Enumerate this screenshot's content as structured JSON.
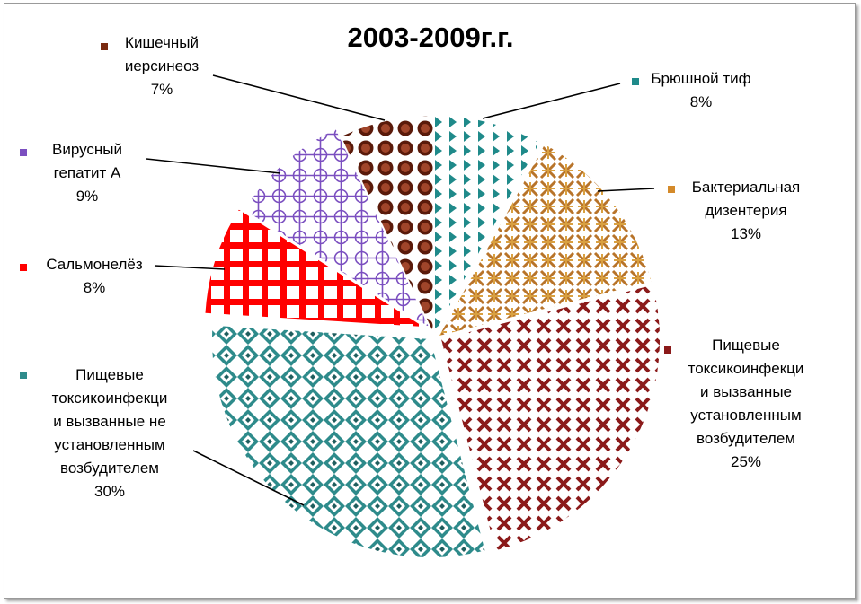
{
  "chart_data": {
    "type": "pie",
    "title": "2003-2009г.г.",
    "slices": [
      {
        "label": "Брюшной тиф",
        "value": 8,
        "value_label": "8%",
        "color": "#1f8a8a"
      },
      {
        "label": "Бактериальная дизентерия",
        "value": 13,
        "value_label": "13%",
        "color": "#d48a2a"
      },
      {
        "label": "Пищевые токсикоинфекци и вызванные установленным возбудителем",
        "value": 25,
        "value_label": "25%",
        "color": "#8b1a1a"
      },
      {
        "label": "Пищевые токсикоинфекци и вызванные не установленным возбудителем",
        "value": 30,
        "value_label": "30%",
        "color": "#2e8b8b"
      },
      {
        "label": "Сальмонелёз",
        "value": 8,
        "value_label": "8%",
        "color": "#ff0000"
      },
      {
        "label": "Вирусный гепатит А",
        "value": 9,
        "value_label": "9%",
        "color": "#7b4fc0"
      },
      {
        "label": "Кишечный иерсинеоз",
        "value": 7,
        "value_label": "7%",
        "color": "#7a2a10"
      }
    ]
  }
}
